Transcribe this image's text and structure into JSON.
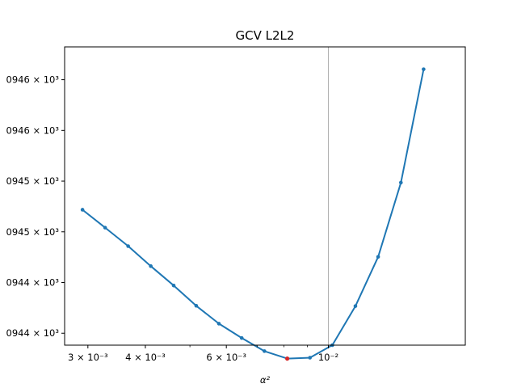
{
  "chart_data": {
    "type": "line",
    "title": "GCV L2L2",
    "xlabel": "α²",
    "xscale": "log",
    "xlim": [
      0.00267,
      0.01985
    ],
    "ylim": [
      0.0,
      1.0
    ],
    "grid": false,
    "x_ticks": [
      {
        "value": 0.003,
        "label": "3 × 10⁻³"
      },
      {
        "value": 0.004,
        "label": "4 × 10⁻³"
      },
      {
        "value": 0.006,
        "label": "6 × 10⁻³"
      },
      {
        "value": 0.01,
        "label": "10⁻²"
      }
    ],
    "x_minor_ticks": [
      0.005,
      0.007,
      0.008,
      0.009
    ],
    "y_ticks": [
      {
        "value": 0.11,
        "label": "0946 × 10³"
      },
      {
        "value": 0.28,
        "label": "0946 × 10³"
      },
      {
        "value": 0.45,
        "label": "0945 × 10³"
      },
      {
        "value": 0.62,
        "label": "0945 × 10³"
      },
      {
        "value": 0.79,
        "label": "0944 × 10³"
      },
      {
        "value": 0.96,
        "label": "0944 × 10³"
      }
    ],
    "vline": {
      "x": 0.01,
      "color": "#b0b0b0"
    },
    "series": [
      {
        "color": "#1f77b4",
        "x": [
          0.00292,
          0.00327,
          0.00367,
          0.00411,
          0.00461,
          0.00516,
          0.00578,
          0.00648,
          0.00726,
          0.00814,
          0.00912,
          0.0102,
          0.01145,
          0.01283,
          0.01438,
          0.01611
        ],
        "y": [
          0.546,
          0.606,
          0.668,
          0.735,
          0.8,
          0.868,
          0.928,
          0.976,
          1.02,
          1.045,
          1.042,
          1.0,
          0.869,
          0.704,
          0.455,
          0.075
        ]
      }
    ],
    "highlight": {
      "x": 0.00814,
      "y": 1.045,
      "color": "#d62728"
    }
  }
}
